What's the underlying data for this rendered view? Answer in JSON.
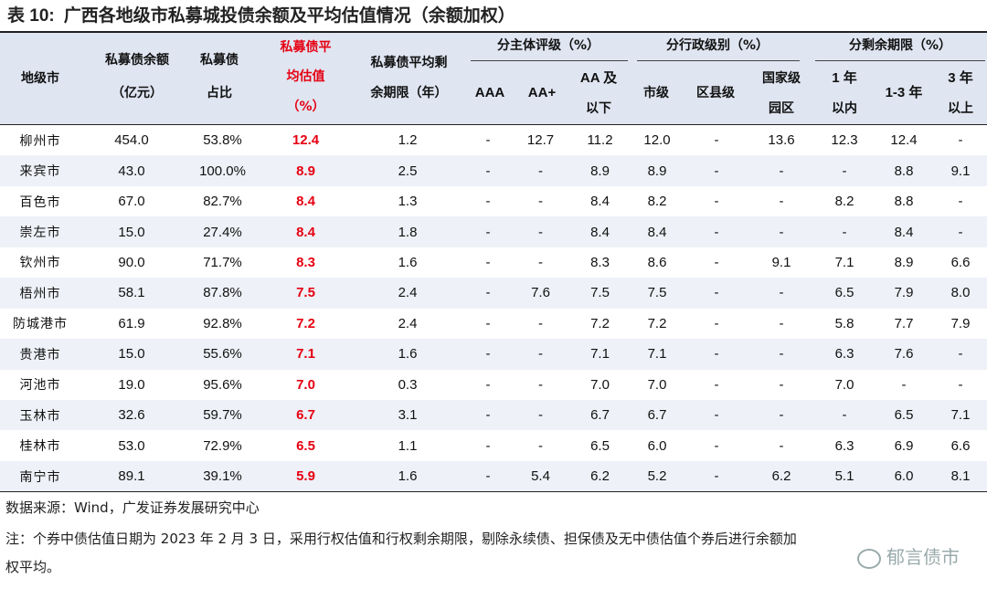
{
  "title": {
    "number": "表 10:",
    "text": "广西各地级市私募城投债余额及平均估值情况（余额加权）"
  },
  "header": {
    "city": "地级市",
    "balance": [
      "私募债余额",
      "（亿元）"
    ],
    "share": [
      "私募债",
      "占比"
    ],
    "valuation": [
      "私募债平",
      "均估值",
      "（%）"
    ],
    "term": [
      "私募债平均剩",
      "余期限（年）"
    ],
    "rating_group": "分主体评级（%）",
    "admin_group": "分行政级别（%）",
    "remain_group": "分剩余期限（%）",
    "rating_cols": [
      "AAA",
      "AA+",
      "AA 及",
      "以下"
    ],
    "admin_cols": [
      "市级",
      "区县级",
      "国家级",
      "园区"
    ],
    "remain_cols": [
      "1 年",
      "以内",
      "1-3 年",
      "3 年",
      "以上"
    ]
  },
  "rows": [
    [
      "柳州市",
      "454.0",
      "53.8%",
      "12.4",
      "1.2",
      "-",
      "12.7",
      "11.2",
      "12.0",
      "-",
      "13.6",
      "12.3",
      "12.4",
      "-"
    ],
    [
      "来宾市",
      "43.0",
      "100.0%",
      "8.9",
      "2.5",
      "-",
      "-",
      "8.9",
      "8.9",
      "-",
      "-",
      "-",
      "8.8",
      "9.1"
    ],
    [
      "百色市",
      "67.0",
      "82.7%",
      "8.4",
      "1.3",
      "-",
      "-",
      "8.4",
      "8.2",
      "-",
      "-",
      "8.2",
      "8.8",
      "-"
    ],
    [
      "崇左市",
      "15.0",
      "27.4%",
      "8.4",
      "1.8",
      "-",
      "-",
      "8.4",
      "8.4",
      "-",
      "-",
      "-",
      "8.4",
      "-"
    ],
    [
      "钦州市",
      "90.0",
      "71.7%",
      "8.3",
      "1.6",
      "-",
      "-",
      "8.3",
      "8.6",
      "-",
      "9.1",
      "7.1",
      "8.9",
      "6.6"
    ],
    [
      "梧州市",
      "58.1",
      "87.8%",
      "7.5",
      "2.4",
      "-",
      "7.6",
      "7.5",
      "7.5",
      "-",
      "-",
      "6.5",
      "7.9",
      "8.0"
    ],
    [
      "防城港市",
      "61.9",
      "92.8%",
      "7.2",
      "2.4",
      "-",
      "-",
      "7.2",
      "7.2",
      "-",
      "-",
      "5.8",
      "7.7",
      "7.9"
    ],
    [
      "贵港市",
      "15.0",
      "55.6%",
      "7.1",
      "1.6",
      "-",
      "-",
      "7.1",
      "7.1",
      "-",
      "-",
      "6.3",
      "7.6",
      "-"
    ],
    [
      "河池市",
      "19.0",
      "95.6%",
      "7.0",
      "0.3",
      "-",
      "-",
      "7.0",
      "7.0",
      "-",
      "-",
      "7.0",
      "-",
      "-"
    ],
    [
      "玉林市",
      "32.6",
      "59.7%",
      "6.7",
      "3.1",
      "-",
      "-",
      "6.7",
      "6.7",
      "-",
      "-",
      "-",
      "6.5",
      "7.1"
    ],
    [
      "桂林市",
      "53.0",
      "72.9%",
      "6.5",
      "1.1",
      "-",
      "-",
      "6.5",
      "6.0",
      "-",
      "-",
      "6.3",
      "6.9",
      "6.6"
    ],
    [
      "南宁市",
      "89.1",
      "39.1%",
      "5.9",
      "1.6",
      "-",
      "5.4",
      "6.2",
      "5.2",
      "-",
      "6.2",
      "5.1",
      "6.0",
      "8.1"
    ]
  ],
  "source": "数据来源：Wind，广发证券发展研究中心",
  "note_line1": "注：个券中债估值日期为 2023 年 2 月 3 日，采用行权估值和行权剩余期限，剔除永续债、担保债及无中债估值个券后进行余额加",
  "note_line2": "权平均。",
  "watermark": "郁言债市",
  "accent_color": "#e60012",
  "header_bg": "#dfe5f1"
}
